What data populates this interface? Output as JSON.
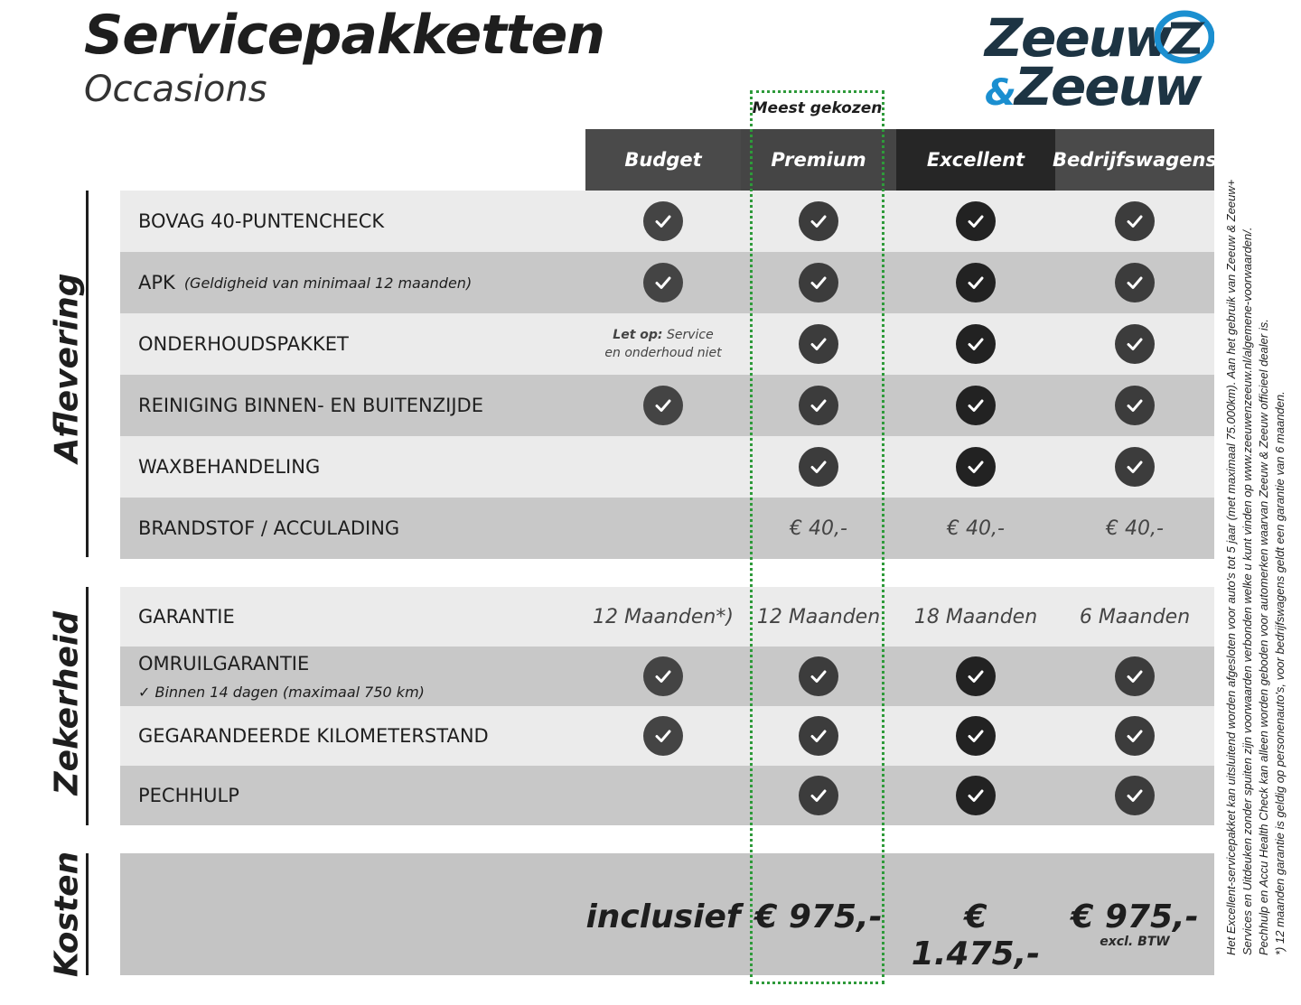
{
  "title": "Servicepakketten",
  "subtitle": "Occasions",
  "logo": {
    "line1": "Zeeuw",
    "amp": "&",
    "line2": "Zeeuw",
    "colors": {
      "text": "#1d3443",
      "accent": "#1b8fd0"
    }
  },
  "badge": "Meest gekozen",
  "columns": [
    {
      "label": "Budget",
      "color": "#4a4a4a",
      "check_color": "#444444"
    },
    {
      "label": "Premium",
      "color": "#454545",
      "check_color": "#3c3c3c"
    },
    {
      "label": "Excellent",
      "color": "#262626",
      "check_color": "#222222"
    },
    {
      "label": "Bedrijfswagens",
      "color": "#4a4a4a",
      "check_color": "#3c3c3c"
    }
  ],
  "sections": {
    "aflevering": "Aflevering",
    "zekerheid": "Zekerheid",
    "kosten": "Kosten"
  },
  "rows": [
    {
      "label": "BOVAG 40-PUNTENCHECK",
      "cells": [
        true,
        true,
        true,
        true
      ]
    },
    {
      "label": "APK",
      "sub": "(Geldigheid van minimaal 12 maanden)",
      "cells": [
        true,
        true,
        true,
        true
      ]
    },
    {
      "label": "ONDERHOUDSPAKKET",
      "cells": [
        {
          "bold": "Let op:",
          "text": " Service en onderhoud niet"
        },
        true,
        true,
        true
      ]
    },
    {
      "label": "REINIGING BINNEN- EN BUITENZIJDE",
      "cells": [
        true,
        true,
        true,
        true
      ]
    },
    {
      "label": "WAXBEHANDELING",
      "cells": [
        false,
        true,
        true,
        true
      ]
    },
    {
      "label": "BRANDSTOF / ACCULADING",
      "cells": [
        false,
        "€ 40,-",
        "€ 40,-",
        "€ 40,-"
      ]
    },
    {
      "label": "GARANTIE",
      "cells": [
        "12 Maanden*)",
        "12 Maanden",
        "18 Maanden",
        "6 Maanden"
      ]
    },
    {
      "label": "OMRUILGARANTIE",
      "sub2": "✓   Binnen 14 dagen (maximaal 750 km)",
      "cells": [
        true,
        true,
        true,
        true
      ]
    },
    {
      "label": "GEGARANDEERDE KILOMETERSTAND",
      "cells": [
        true,
        true,
        true,
        true
      ]
    },
    {
      "label": "PECHHULP",
      "cells": [
        false,
        true,
        true,
        true
      ]
    }
  ],
  "prices": [
    "inclusief",
    "€ 975,-",
    "€ 1.475,-",
    "€ 975,-"
  ],
  "price_note": "excl. BTW",
  "footnotes": [
    "Het Excellent-servicepakket kan uitsluitend worden afgesloten voor auto's tot 5 jaar (met maximaal 75.000km). Aan het gebruik van Zeeuw & Zeeuw+",
    "Services en Uitdeuken zonder spuiten zijn voorwaarden verbonden welke u kunt vinden op www.zeeuwenzeeuw.nl/algemene-voorwaarden/.",
    "Pechhulp en Accu Health Check kan alleen worden geboden voor automerken waarvan Zeeuw & Zeeuw officieel dealer is.",
    "*) 12 maanden garantie is geldig op personenauto's, voor bedrijfswagens geldt een garantie van 6 maanden."
  ]
}
